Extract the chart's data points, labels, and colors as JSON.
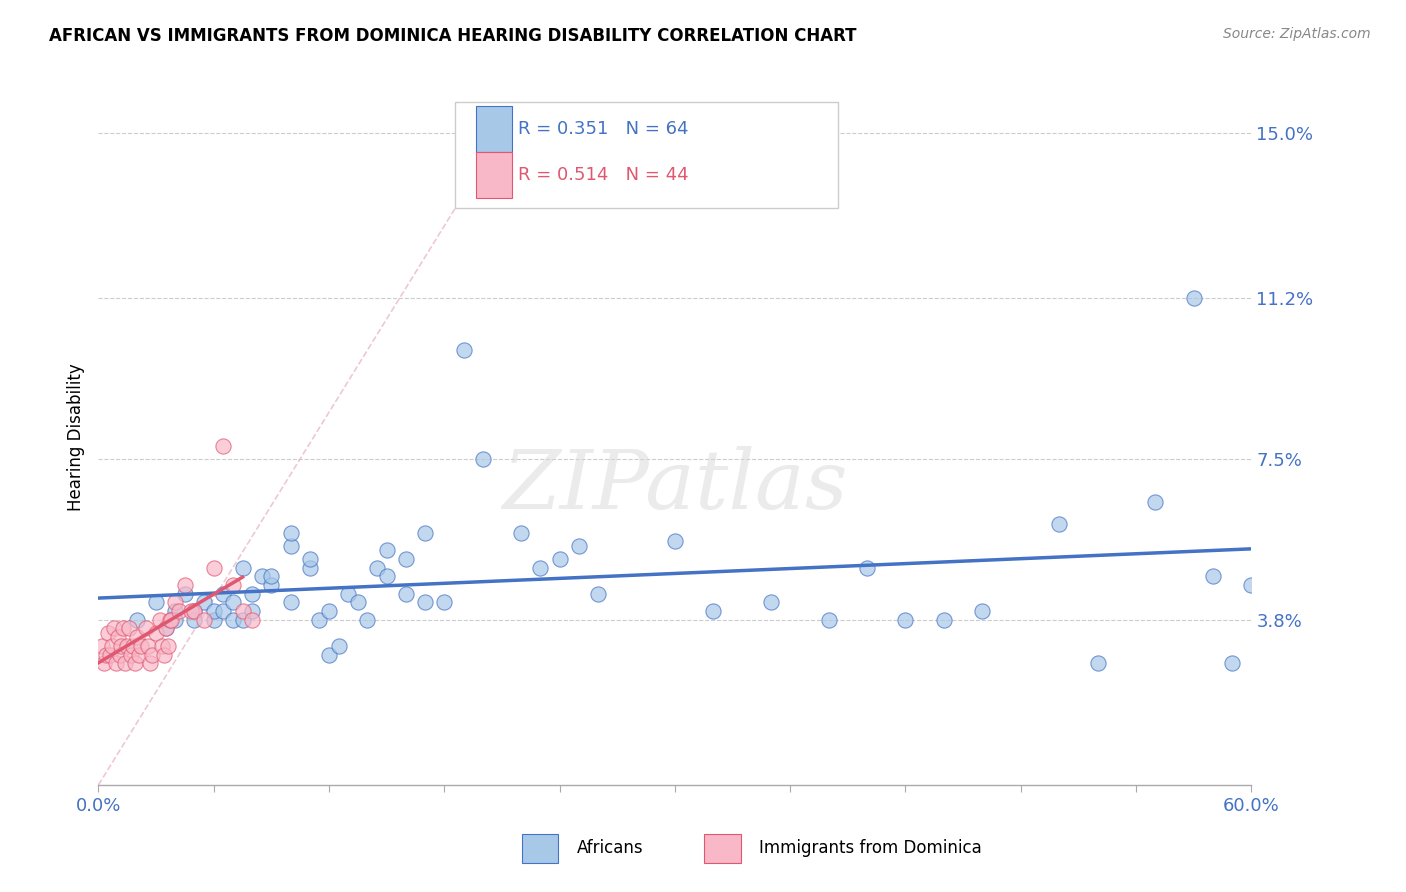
{
  "title": "AFRICAN VS IMMIGRANTS FROM DOMINICA HEARING DISABILITY CORRELATION CHART",
  "source": "Source: ZipAtlas.com",
  "ylabel": "Hearing Disability",
  "xlim": [
    0.0,
    0.6
  ],
  "ylim": [
    0.0,
    0.16
  ],
  "yticks": [
    0.038,
    0.075,
    0.112,
    0.15
  ],
  "ytick_labels": [
    "3.8%",
    "7.5%",
    "11.2%",
    "15.0%"
  ],
  "xticks": [
    0.0,
    0.06,
    0.12,
    0.18,
    0.24,
    0.3,
    0.36,
    0.42,
    0.48,
    0.54,
    0.6
  ],
  "xtick_labels_show": [
    "0.0%",
    "60.0%"
  ],
  "color_african": "#a8c8e8",
  "color_dominica": "#f8b8c8",
  "color_trend_african": "#4472c4",
  "color_trend_dominica": "#e05870",
  "legend_r_african": "R = 0.351",
  "legend_n_african": "N = 64",
  "legend_r_dominica": "R = 0.514",
  "legend_n_dominica": "N = 44",
  "watermark": "ZIPatlas",
  "africans_x": [
    0.02,
    0.03,
    0.035,
    0.04,
    0.04,
    0.045,
    0.05,
    0.05,
    0.055,
    0.06,
    0.06,
    0.065,
    0.065,
    0.07,
    0.07,
    0.075,
    0.075,
    0.08,
    0.08,
    0.085,
    0.09,
    0.09,
    0.1,
    0.1,
    0.1,
    0.11,
    0.11,
    0.115,
    0.12,
    0.12,
    0.125,
    0.13,
    0.135,
    0.14,
    0.145,
    0.15,
    0.15,
    0.16,
    0.16,
    0.17,
    0.17,
    0.18,
    0.19,
    0.2,
    0.22,
    0.23,
    0.24,
    0.25,
    0.26,
    0.3,
    0.32,
    0.35,
    0.38,
    0.4,
    0.42,
    0.44,
    0.46,
    0.5,
    0.52,
    0.55,
    0.57,
    0.58,
    0.59,
    0.6
  ],
  "africans_y": [
    0.038,
    0.042,
    0.036,
    0.04,
    0.038,
    0.044,
    0.04,
    0.038,
    0.042,
    0.038,
    0.04,
    0.044,
    0.04,
    0.038,
    0.042,
    0.038,
    0.05,
    0.044,
    0.04,
    0.048,
    0.046,
    0.048,
    0.055,
    0.058,
    0.042,
    0.05,
    0.052,
    0.038,
    0.04,
    0.03,
    0.032,
    0.044,
    0.042,
    0.038,
    0.05,
    0.048,
    0.054,
    0.044,
    0.052,
    0.042,
    0.058,
    0.042,
    0.1,
    0.075,
    0.058,
    0.05,
    0.052,
    0.055,
    0.044,
    0.056,
    0.04,
    0.042,
    0.038,
    0.05,
    0.038,
    0.038,
    0.04,
    0.06,
    0.028,
    0.065,
    0.112,
    0.048,
    0.028,
    0.046
  ],
  "dominica_x": [
    0.002,
    0.003,
    0.004,
    0.005,
    0.006,
    0.007,
    0.008,
    0.009,
    0.01,
    0.011,
    0.012,
    0.013,
    0.014,
    0.015,
    0.016,
    0.017,
    0.018,
    0.019,
    0.02,
    0.021,
    0.022,
    0.025,
    0.026,
    0.027,
    0.028,
    0.03,
    0.032,
    0.033,
    0.034,
    0.035,
    0.036,
    0.037,
    0.038,
    0.04,
    0.042,
    0.045,
    0.048,
    0.05,
    0.055,
    0.06,
    0.065,
    0.07,
    0.075,
    0.08
  ],
  "dominica_y": [
    0.032,
    0.028,
    0.03,
    0.035,
    0.03,
    0.032,
    0.036,
    0.028,
    0.034,
    0.03,
    0.032,
    0.036,
    0.028,
    0.032,
    0.036,
    0.03,
    0.032,
    0.028,
    0.034,
    0.03,
    0.032,
    0.036,
    0.032,
    0.028,
    0.03,
    0.035,
    0.038,
    0.032,
    0.03,
    0.036,
    0.032,
    0.038,
    0.038,
    0.042,
    0.04,
    0.046,
    0.04,
    0.04,
    0.038,
    0.05,
    0.078,
    0.046,
    0.04,
    0.038
  ]
}
